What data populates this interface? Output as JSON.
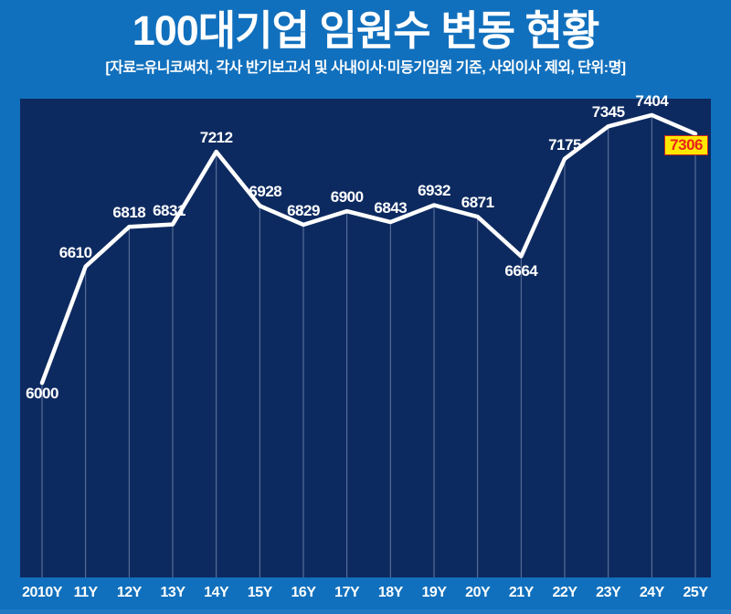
{
  "title": "100대기업 임원수 변동 현황",
  "subtitle": "[자료=유니코써치, 각사 반기보고서 및 사내이사·미등기임원 기준, 사외이사 제외, 단위:명]",
  "colors": {
    "background": "#1170bd",
    "plot_background": "#0d2a60",
    "line": "#ffffff",
    "drop_line": "#b9c8e0",
    "value_label": "#ffffff",
    "axis_label": "#ffffff",
    "highlight_background": "#ffe800",
    "highlight_text": "#e8231c",
    "highlight_border": "#c8281e"
  },
  "chart_data": {
    "type": "line",
    "title": "100대기업 임원수 변동 현황",
    "subtitle": "[자료=유니코써치, 각사 반기보고서 및 사내이사·미등기임원 기준, 사외이사 제외, 단위:명]",
    "categories": [
      "2010Y",
      "11Y",
      "12Y",
      "13Y",
      "14Y",
      "15Y",
      "16Y",
      "17Y",
      "18Y",
      "19Y",
      "20Y",
      "21Y",
      "22Y",
      "23Y",
      "24Y",
      "25Y"
    ],
    "values": [
      6000,
      6610,
      6818,
      6831,
      7212,
      6928,
      6829,
      6900,
      6843,
      6932,
      6871,
      6664,
      7175,
      7345,
      7404,
      7306
    ],
    "xlabel": "",
    "ylabel": "명",
    "ylim": [
      4980,
      7490
    ],
    "grid": "vertical drop lines from each point to baseline",
    "legend": "none",
    "highlight_last_point": true,
    "unit": "명"
  }
}
